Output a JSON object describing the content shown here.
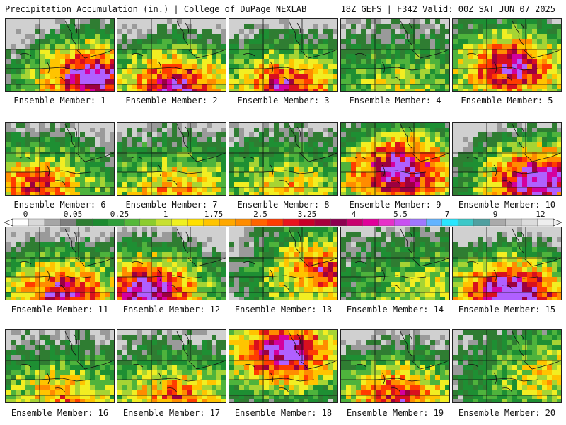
{
  "header": {
    "left_title": "Precipitation Accumulation (in.) | College of DuPage NEXLAB",
    "right_title": "18Z GEFS | F342 Valid: 00Z SAT JUN 07 2025"
  },
  "member_label_prefix": "Ensemble Member: ",
  "members": [
    {
      "number": 1,
      "label": "Ensemble Member: 1",
      "intensity": 0.8,
      "wet_region": "south-east"
    },
    {
      "number": 2,
      "label": "Ensemble Member: 2",
      "intensity": 0.7,
      "wet_region": "south"
    },
    {
      "number": 3,
      "label": "Ensemble Member: 3",
      "intensity": 0.62,
      "wet_region": "south"
    },
    {
      "number": 4,
      "label": "Ensemble Member: 4",
      "intensity": 0.3,
      "wet_region": "south"
    },
    {
      "number": 5,
      "label": "Ensemble Member: 5",
      "intensity": 0.72,
      "wet_region": "central"
    },
    {
      "number": 6,
      "label": "Ensemble Member: 6",
      "intensity": 0.55,
      "wet_region": "south-west"
    },
    {
      "number": 7,
      "label": "Ensemble Member: 7",
      "intensity": 0.45,
      "wet_region": "south"
    },
    {
      "number": 8,
      "label": "Ensemble Member: 8",
      "intensity": 0.4,
      "wet_region": "south"
    },
    {
      "number": 9,
      "label": "Ensemble Member: 9",
      "intensity": 0.85,
      "wet_region": "central"
    },
    {
      "number": 10,
      "label": "Ensemble Member: 10",
      "intensity": 0.82,
      "wet_region": "south-east"
    },
    {
      "number": 11,
      "label": "Ensemble Member: 11",
      "intensity": 0.68,
      "wet_region": "south"
    },
    {
      "number": 12,
      "label": "Ensemble Member: 12",
      "intensity": 0.78,
      "wet_region": "south-west"
    },
    {
      "number": 13,
      "label": "Ensemble Member: 13",
      "intensity": 0.6,
      "wet_region": "east"
    },
    {
      "number": 14,
      "label": "Ensemble Member: 14",
      "intensity": 0.3,
      "wet_region": "south-east"
    },
    {
      "number": 15,
      "label": "Ensemble Member: 15",
      "intensity": 0.85,
      "wet_region": "south"
    },
    {
      "number": 16,
      "label": "Ensemble Member: 16",
      "intensity": 0.45,
      "wet_region": "south"
    },
    {
      "number": 17,
      "label": "Ensemble Member: 17",
      "intensity": 0.5,
      "wet_region": "south"
    },
    {
      "number": 18,
      "label": "Ensemble Member: 18",
      "intensity": 0.9,
      "wet_region": "north"
    },
    {
      "number": 19,
      "label": "Ensemble Member: 19",
      "intensity": 0.6,
      "wet_region": "south"
    },
    {
      "number": 20,
      "label": "Ensemble Member: 20",
      "intensity": 0.4,
      "wet_region": "east"
    }
  ],
  "colorbar": {
    "tick_labels": [
      "0",
      "0.05",
      "0.25",
      "1",
      "1.75",
      "2.5",
      "3.25",
      "4",
      "5.5",
      "7",
      "9",
      "12"
    ],
    "colors": [
      "#ffffff",
      "#d9d9d9",
      "#a6a6a6",
      "#7f7f7f",
      "#2e7d32",
      "#1b8a2f",
      "#2f9e3a",
      "#55b83a",
      "#8ccc2e",
      "#c8e030",
      "#f0f020",
      "#ffe000",
      "#ffc400",
      "#ffa800",
      "#ff8c00",
      "#ff6400",
      "#ff3c00",
      "#e8141e",
      "#c80028",
      "#a8003c",
      "#8c0050",
      "#c8006e",
      "#e0009a",
      "#e632c8",
      "#c850f0",
      "#a078ff",
      "#64b4ff",
      "#28e6ff",
      "#3cc8c8",
      "#50a0a0",
      "#aaaaaa",
      "#c8c8c8",
      "#dcdcdc",
      "#eeeeee"
    ]
  }
}
